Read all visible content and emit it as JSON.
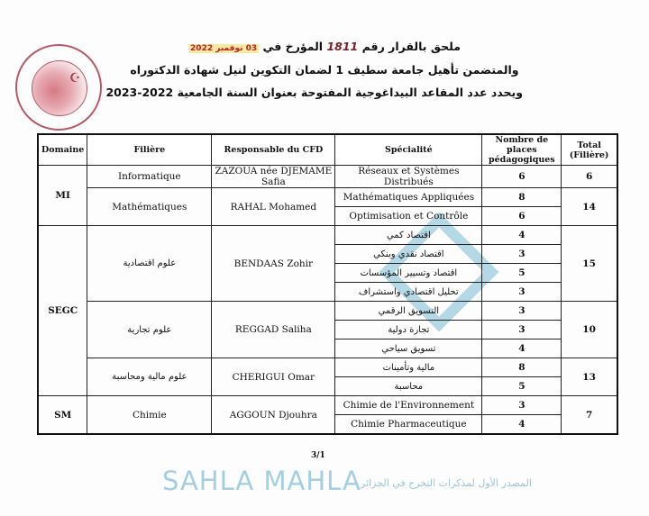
{
  "header": {
    "line1": "ملحق بالقرار رقم",
    "decision_number": "1811",
    "line1_suffix": "المؤرخ في",
    "date": "03 نوفمبر 2022",
    "line2": "والمتضمن تأهيل جامعة سطيف 1 لضمان التكوين لنيل شهادة الدكتوراه",
    "line3": "ويحدد عدد المقاعد البيداغوجية المفتوحة بعنوان السنة الجامعية 2022-2023"
  },
  "stamp": {
    "text": "وزارة التعليم العالي والبحث العلمي",
    "color": "#b55a6a"
  },
  "watermark": {
    "title": "SAHLA MAHLA",
    "subtitle": "المصدر الأول لمذكرات التخرج في الجزائر"
  },
  "table": {
    "headers": [
      "Domaine",
      "Filière",
      "Responsable du CFD",
      "Spécialité",
      "Nombre de places pédagogiques",
      "Total (Filière)"
    ],
    "domains": [
      {
        "name": "MI",
        "filieres": [
          {
            "name": "Informatique",
            "responsable": "ZAZOUA née DJEMAME Safia",
            "total": "6",
            "specialites": [
              {
                "name": "Réseaux et Systèmes Distribués",
                "places": "6"
              }
            ]
          },
          {
            "name": "Mathématiques",
            "responsable": "RAHAL Mohamed",
            "total": "14",
            "specialites": [
              {
                "name": "Mathématiques Appliquées",
                "places": "8"
              },
              {
                "name": "Optimisation et Contrôle",
                "places": "6"
              }
            ]
          }
        ]
      },
      {
        "name": "SEGC",
        "filieres": [
          {
            "name": "علوم اقتصادية",
            "responsable": "BENDAAS Zohir",
            "total": "15",
            "specialites": [
              {
                "name": "اقتصاد كمي",
                "places": "4"
              },
              {
                "name": "اقتصاد نقدي وبنكي",
                "places": "3"
              },
              {
                "name": "اقتصاد وتسيير المؤسسات",
                "places": "5"
              },
              {
                "name": "تحليل اقتصادي واستشراف",
                "places": "3"
              }
            ]
          },
          {
            "name": "علوم تجارية",
            "responsable": "REGGAD Saliha",
            "total": "10",
            "specialites": [
              {
                "name": "التسويق الرقمي",
                "places": "3"
              },
              {
                "name": "تجارة دولية",
                "places": "3"
              },
              {
                "name": "تسويق سياحي",
                "places": "4"
              }
            ]
          },
          {
            "name": "علوم مالية ومحاسبة",
            "responsable": "CHERIGUI Omar",
            "total": "13",
            "specialites": [
              {
                "name": "مالية وتأمينات",
                "places": "8"
              },
              {
                "name": "محاسبة",
                "places": "5"
              }
            ]
          }
        ]
      },
      {
        "name": "SM",
        "filieres": [
          {
            "name": "Chimie",
            "responsable": "AGGOUN Djouhra",
            "total": "7",
            "specialites": [
              {
                "name": "Chimie de l'Environnement",
                "places": "3"
              },
              {
                "name": "Chimie Pharmaceutique",
                "places": "4"
              }
            ]
          }
        ]
      }
    ]
  },
  "page_number": "3/1"
}
